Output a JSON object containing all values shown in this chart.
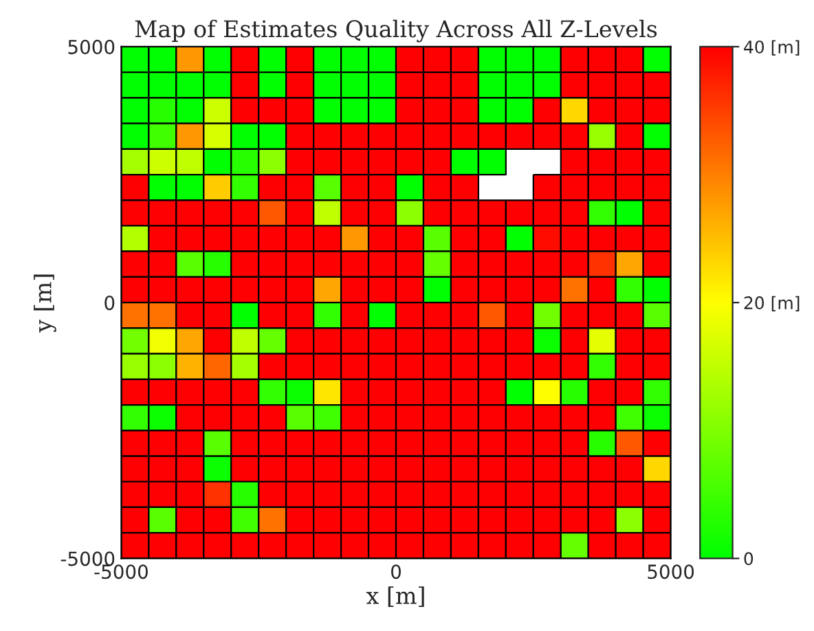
{
  "chart_data": {
    "type": "heatmap",
    "title": "Map of Estimates Quality Across All Z-Levels",
    "xlabel": "x [m]",
    "ylabel": "y [m]",
    "xlim": [
      -5000,
      5000
    ],
    "xticks": [
      -5000,
      0,
      5000
    ],
    "ylim": [
      -5000,
      5000
    ],
    "yticks": [
      -5000,
      0,
      5000
    ],
    "colors": [
      "#00ff00",
      "#ffff00",
      "#ff0000"
    ],
    "clim": [
      0,
      40
    ],
    "cticks": [
      0,
      {
        "value": 20,
        "label": "20 [m]"
      },
      {
        "value": 40,
        "label": "40 [m]"
      }
    ],
    "cells": [
      [
        0,
        0,
        28,
        0,
        40,
        0,
        40,
        0,
        0,
        0,
        40,
        40,
        40,
        0,
        0,
        0,
        40,
        40,
        40,
        0
      ],
      [
        0,
        0,
        0,
        0,
        40,
        0,
        40,
        0,
        0,
        0,
        40,
        40,
        40,
        0,
        0,
        0,
        40,
        40,
        40,
        40
      ],
      [
        0,
        3,
        0,
        16,
        40,
        40,
        40,
        0,
        0,
        0,
        40,
        40,
        40,
        0,
        0,
        40,
        23,
        40,
        40,
        40
      ],
      [
        0,
        5,
        28,
        17,
        0,
        0,
        40,
        40,
        40,
        40,
        40,
        40,
        40,
        40,
        40,
        40,
        40,
        12,
        40,
        0
      ],
      [
        13,
        16,
        15,
        0,
        3,
        11,
        40,
        40,
        40,
        40,
        40,
        40,
        0,
        0,
        null,
        null,
        40,
        40,
        40,
        40
      ],
      [
        40,
        0,
        0,
        24,
        4,
        40,
        40,
        7,
        40,
        40,
        0,
        40,
        40,
        null,
        null,
        40,
        40,
        40,
        40,
        40
      ],
      [
        40,
        40,
        40,
        40,
        40,
        33,
        40,
        15,
        40,
        40,
        11,
        40,
        40,
        40,
        40,
        40,
        40,
        4,
        0,
        40
      ],
      [
        14,
        40,
        40,
        40,
        40,
        40,
        40,
        40,
        28,
        40,
        40,
        7,
        40,
        40,
        0,
        39,
        40,
        40,
        40,
        40
      ],
      [
        40,
        40,
        7,
        3,
        40,
        40,
        40,
        40,
        40,
        40,
        40,
        8,
        40,
        40,
        40,
        40,
        40,
        36,
        27,
        40
      ],
      [
        40,
        40,
        40,
        40,
        40,
        40,
        40,
        27,
        40,
        40,
        40,
        0,
        40,
        40,
        40,
        40,
        31,
        40,
        4,
        0
      ],
      [
        31,
        31,
        40,
        40,
        0,
        40,
        40,
        4,
        40,
        0,
        40,
        40,
        40,
        33,
        40,
        9,
        40,
        40,
        40,
        7
      ],
      [
        9,
        19,
        27,
        40,
        15,
        8,
        40,
        40,
        40,
        40,
        40,
        40,
        40,
        40,
        40,
        1,
        40,
        18,
        40,
        40
      ],
      [
        12,
        11,
        26,
        32,
        13,
        40,
        40,
        40,
        40,
        40,
        40,
        40,
        40,
        40,
        40,
        40,
        40,
        4,
        40,
        40
      ],
      [
        40,
        40,
        40,
        40,
        40,
        4,
        1,
        22,
        40,
        40,
        40,
        40,
        40,
        40,
        0,
        20,
        3,
        40,
        40,
        4
      ],
      [
        4,
        1,
        40,
        40,
        40,
        40,
        7,
        5,
        40,
        40,
        40,
        40,
        40,
        40,
        40,
        40,
        40,
        40,
        5,
        1
      ],
      [
        40,
        40,
        40,
        7,
        40,
        40,
        40,
        40,
        40,
        40,
        40,
        40,
        40,
        40,
        40,
        40,
        40,
        3,
        33,
        40
      ],
      [
        40,
        40,
        40,
        1,
        40,
        40,
        40,
        40,
        40,
        40,
        40,
        40,
        40,
        40,
        40,
        40,
        40,
        40,
        40,
        23
      ],
      [
        40,
        40,
        40,
        36,
        3,
        40,
        40,
        40,
        40,
        40,
        40,
        40,
        40,
        40,
        40,
        40,
        40,
        40,
        40,
        40
      ],
      [
        40,
        7,
        40,
        40,
        5,
        31,
        40,
        40,
        40,
        40,
        40,
        40,
        40,
        40,
        40,
        40,
        40,
        40,
        11,
        40
      ],
      [
        40,
        40,
        40,
        40,
        40,
        40,
        40,
        40,
        40,
        40,
        40,
        40,
        40,
        40,
        40,
        40,
        8,
        40,
        40,
        40
      ]
    ]
  }
}
